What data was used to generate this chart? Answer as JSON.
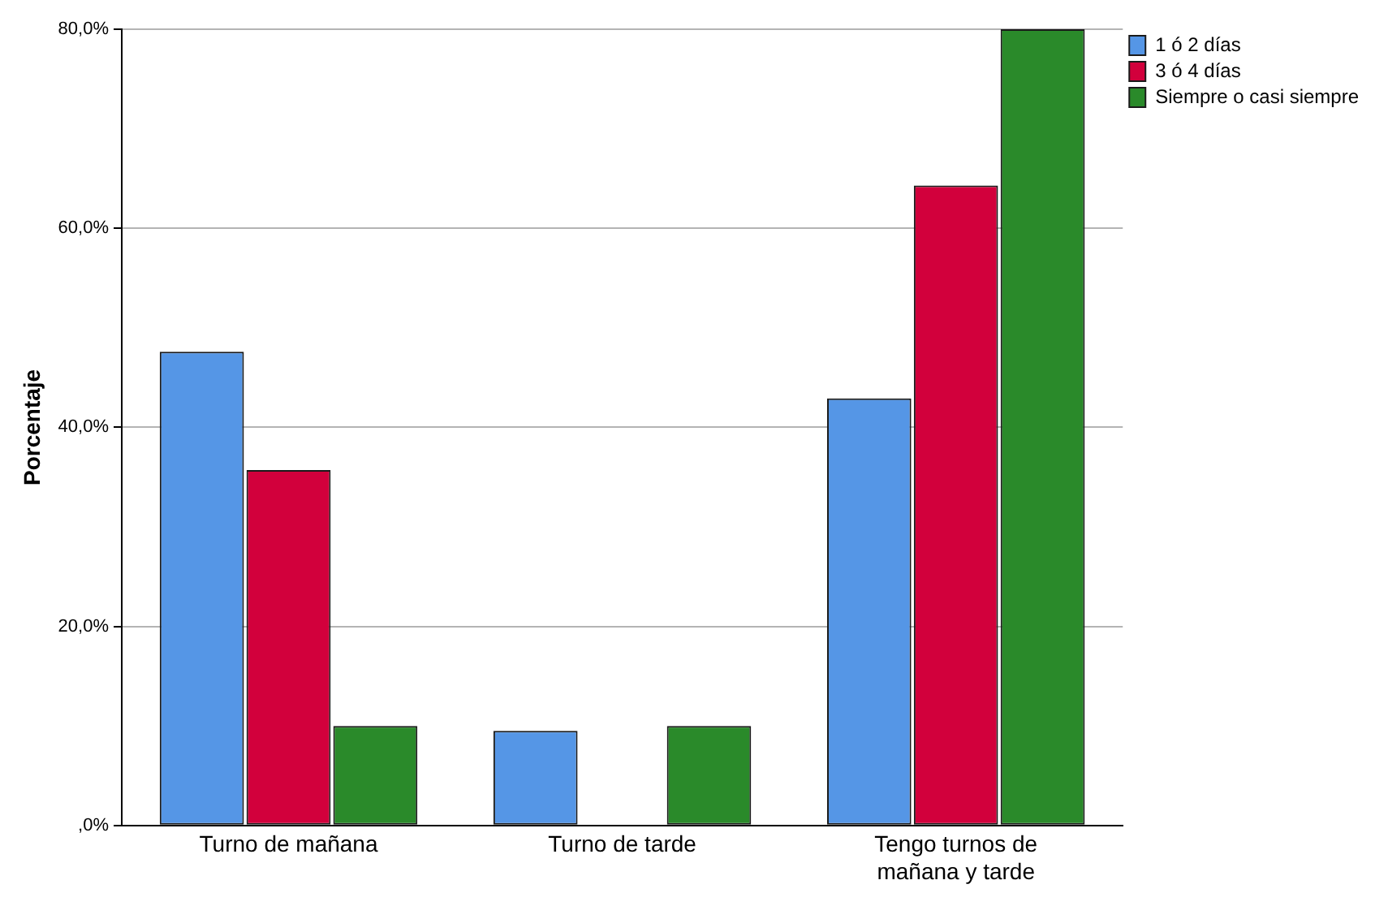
{
  "chart_data": {
    "type": "bar",
    "ylabel": "Porcentaje",
    "categories": [
      "Turno de mañana",
      "Turno de tarde",
      "Tengo turnos de mañana y tarde"
    ],
    "series": [
      {
        "name": "1 ó 2 días",
        "color": "#5596e6",
        "values": [
          47.6,
          9.5,
          42.9
        ]
      },
      {
        "name": "3 ó 4 días",
        "color": "#d2003c",
        "values": [
          35.7,
          0,
          64.3
        ]
      },
      {
        "name": "Siempre o casi siempre",
        "color": "#2a8a2a",
        "values": [
          10.0,
          10.0,
          80.0
        ]
      }
    ],
    "ylim": [
      0,
      80
    ],
    "yticks": [
      {
        "value": 0,
        "label": ",0%"
      },
      {
        "value": 20,
        "label": "20,0%"
      },
      {
        "value": 40,
        "label": "40,0%"
      },
      {
        "value": 60,
        "label": "60,0%"
      },
      {
        "value": 80,
        "label": "80,0%"
      }
    ],
    "grid": "y",
    "legend": "top right"
  }
}
